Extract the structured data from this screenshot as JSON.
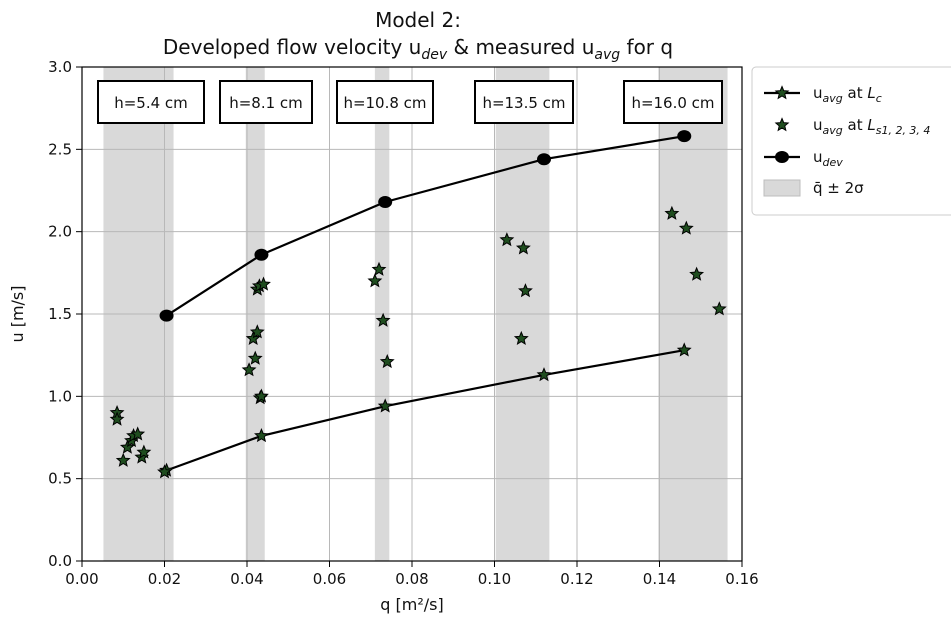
{
  "chart_data": {
    "type": "scatter",
    "title_line1": "Model 2:",
    "title_line2": "Developed flow velocity u_dev & measured u_avg for q",
    "xlabel": "q [m²/s]",
    "ylabel": "u [m/s]",
    "xlim": [
      0.0,
      0.16
    ],
    "ylim": [
      0.0,
      3.0
    ],
    "x_ticks": [
      "0.00",
      "0.02",
      "0.04",
      "0.06",
      "0.08",
      "0.10",
      "0.12",
      "0.14",
      "0.16"
    ],
    "y_ticks": [
      "0.0",
      "0.5",
      "1.0",
      "1.5",
      "2.0",
      "2.5",
      "3.0"
    ],
    "grid": true,
    "legend_position": "outside-right",
    "colors": {
      "line": "#000000",
      "star_fill": "#1f4d1f",
      "band": "#d9d9d9"
    },
    "bands": [
      {
        "label": "h=5.4 cm",
        "q_min": 0.0052,
        "q_max": 0.0222
      },
      {
        "label": "h=8.1 cm",
        "q_min": 0.0397,
        "q_max": 0.0443
      },
      {
        "label": "h=10.8  cm",
        "q_min": 0.071,
        "q_max": 0.0745
      },
      {
        "label": "h=13.5 cm",
        "q_min": 0.1003,
        "q_max": 0.1133
      },
      {
        "label": "h=16.0 cm",
        "q_min": 0.1397,
        "q_max": 0.1565
      }
    ],
    "series": [
      {
        "name": "u_avg at L_c",
        "type": "line-star",
        "x": [
          0.0205,
          0.0435,
          0.0735,
          0.112,
          0.146
        ],
        "y": [
          0.55,
          0.76,
          0.94,
          1.13,
          1.28
        ]
      },
      {
        "name": "u_avg at L_s1,2,3,4",
        "type": "star",
        "x": [
          0.0085,
          0.0085,
          0.01,
          0.011,
          0.012,
          0.0125,
          0.0135,
          0.0145,
          0.015,
          0.02,
          0.0405,
          0.0415,
          0.042,
          0.0425,
          0.0425,
          0.043,
          0.0432,
          0.0435,
          0.044,
          0.071,
          0.072,
          0.073,
          0.074,
          0.103,
          0.1065,
          0.107,
          0.1075,
          0.143,
          0.1465,
          0.149,
          0.1545
        ],
        "y": [
          0.9,
          0.86,
          0.61,
          0.69,
          0.73,
          0.76,
          0.77,
          0.63,
          0.66,
          0.54,
          1.16,
          1.35,
          1.23,
          1.39,
          1.65,
          1.67,
          0.99,
          1.0,
          1.68,
          1.7,
          1.77,
          1.46,
          1.21,
          1.95,
          1.35,
          1.9,
          1.64,
          2.11,
          2.02,
          1.74,
          1.53
        ]
      },
      {
        "name": "u_dev",
        "type": "line-circle",
        "x": [
          0.0205,
          0.0435,
          0.0735,
          0.112,
          0.146
        ],
        "y": [
          1.49,
          1.86,
          2.18,
          2.44,
          2.58
        ]
      }
    ],
    "legend": [
      {
        "main": "u",
        "sub": "avg",
        "rest": " at ",
        "var": "L",
        "varsub": "c"
      },
      {
        "main": "u",
        "sub": "avg",
        "rest": " at ",
        "var": "L",
        "varsub": "s1, 2, 3, 4"
      },
      {
        "main": "u",
        "sub": "dev",
        "rest": "",
        "var": "",
        "varsub": ""
      },
      {
        "main": "q̄ ± 2σ",
        "sub": "",
        "rest": "",
        "var": "",
        "varsub": ""
      }
    ]
  }
}
